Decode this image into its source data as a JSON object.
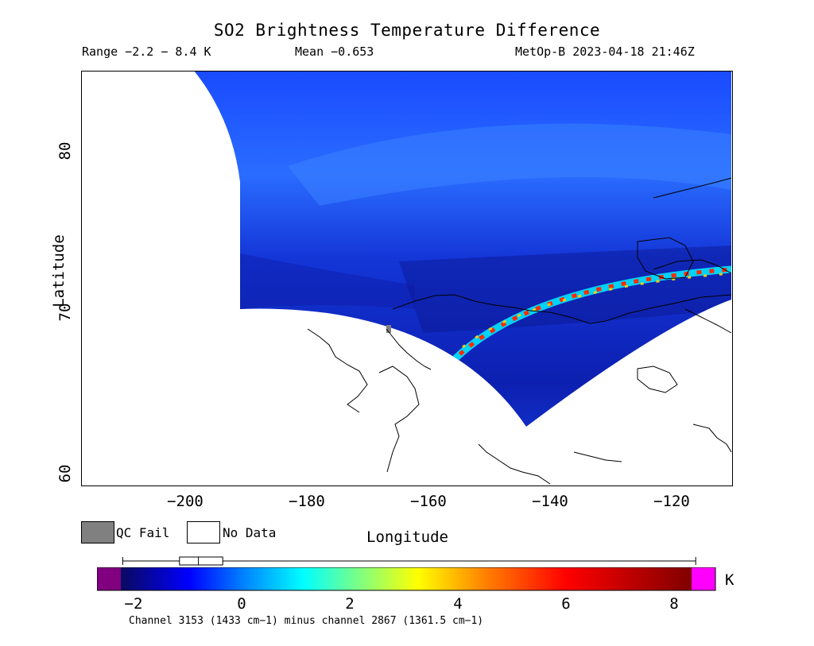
{
  "map": {
    "title": "SO2 Brightness Temperature Difference",
    "range_text": "Range −2.2 − 8.4 K",
    "mean_text": "Mean −0.653",
    "satellite_text": "MetOp-B 2023-04-18 21:46Z",
    "x_axis": {
      "label": "Longitude",
      "ticks": [
        {
          "label": "−200",
          "value": -200
        },
        {
          "label": "−180",
          "value": -180
        },
        {
          "label": "−160",
          "value": -160
        },
        {
          "label": "−140",
          "value": -140
        },
        {
          "label": "−120",
          "value": -120
        }
      ]
    },
    "y_axis": {
      "label": "Latitude",
      "ticks": [
        {
          "label": "80",
          "value": 80
        },
        {
          "label": "70",
          "value": 70
        },
        {
          "label": "60",
          "value": 60
        }
      ]
    },
    "legend": {
      "qc_fail_label": "QC Fail",
      "qc_fail_color": "#808080",
      "no_data_label": "No Data",
      "no_data_color": "#ffffff"
    },
    "colorbar": {
      "unit": "K",
      "min": -2.6,
      "max": 8.4,
      "tick_labels": [
        {
          "label": "−2",
          "value": -2
        },
        {
          "label": "0",
          "value": 0
        },
        {
          "label": "2",
          "value": 2
        },
        {
          "label": "4",
          "value": 4
        },
        {
          "label": "6",
          "value": 6
        },
        {
          "label": "8",
          "value": 8
        }
      ],
      "underflow_color": "#800080",
      "overflow_color": "#ff00ff",
      "box_plot": {
        "whisker_low": -2.2,
        "q1": -1.15,
        "median": -0.8,
        "q3": -0.35,
        "whisker_high": 8.4
      }
    },
    "footer": "Channel 3153 (1433 cm−1) minus channel 2867 (1361.5 cm−1)"
  }
}
